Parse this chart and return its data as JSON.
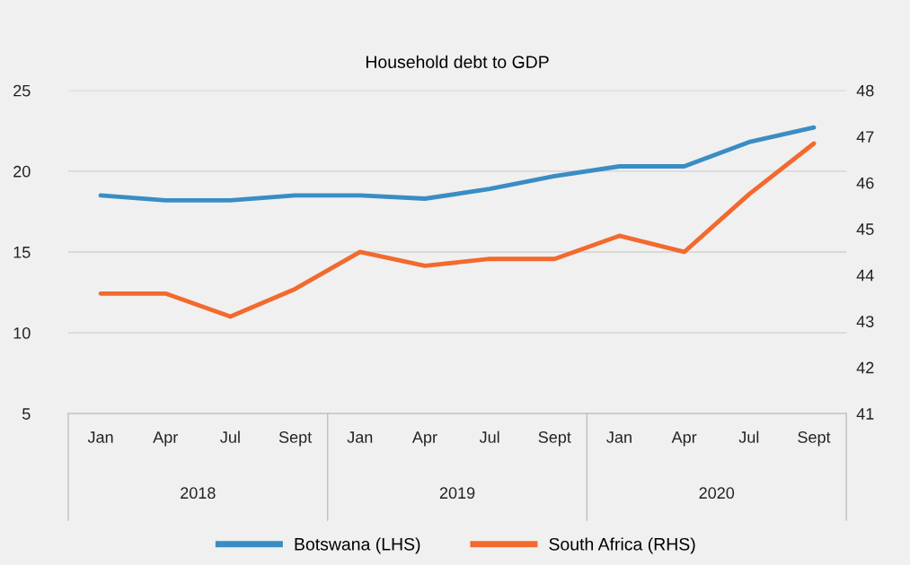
{
  "chart_data": {
    "type": "line",
    "title": "Household debt to GDP",
    "categories": [
      "Jan",
      "Apr",
      "Jul",
      "Sept",
      "Jan",
      "Apr",
      "Jul",
      "Sept",
      "Jan",
      "Apr",
      "Jul",
      "Sept"
    ],
    "annotations": [
      "2018",
      "2019",
      "2020"
    ],
    "series": [
      {
        "name": "Botswana (LHS)",
        "color": "#3a8dc4",
        "values": [
          18.5,
          18.2,
          18.2,
          18.5,
          18.5,
          18.3,
          18.9,
          19.7,
          20.3,
          20.3,
          21.8,
          22.7
        ]
      },
      {
        "name": "South Africa (RHS)",
        "color": "#f26a2e",
        "axis": "y2",
        "values": [
          43.6,
          43.6,
          43.1,
          43.7,
          44.5,
          44.2,
          44.35,
          44.35,
          44.85,
          44.5,
          45.75,
          46.85
        ]
      }
    ],
    "ylim": [
      5,
      25
    ],
    "yticks": [
      5,
      10,
      15,
      20,
      25
    ],
    "y2lim": [
      41,
      48
    ],
    "y2ticks": [
      41,
      42,
      43,
      44,
      45,
      46,
      47,
      48
    ],
    "grid": "y",
    "legend": "bottom",
    "marker": "none",
    "line_style": "solid"
  }
}
